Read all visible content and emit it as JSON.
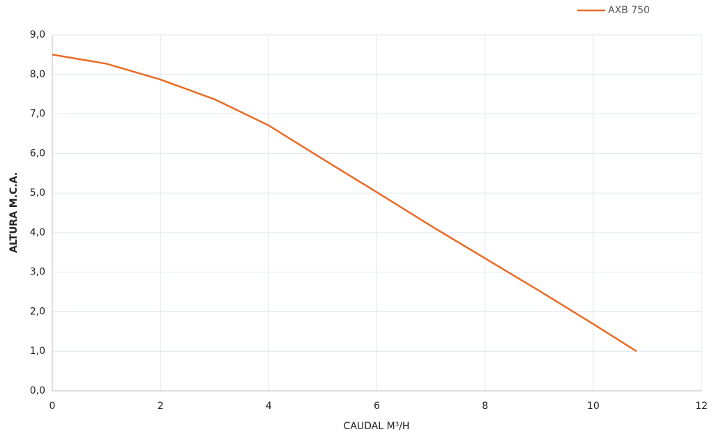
{
  "chart_data": {
    "type": "line",
    "x_label": "CAUDAL M³/H",
    "y_label": "ALTURA M.C.A.",
    "x": [
      0,
      1,
      2,
      3,
      4,
      5,
      6,
      7,
      8,
      9,
      10,
      10.8
    ],
    "series": [
      {
        "name": "AXB 750",
        "color": "#ea6a24",
        "values": [
          8.5,
          8.27,
          7.87,
          7.37,
          6.71,
          5.86,
          5.02,
          4.17,
          3.35,
          2.53,
          1.69,
          1.0
        ]
      }
    ],
    "xlim": [
      0,
      12
    ],
    "xticks": [
      0,
      2,
      4,
      6,
      8,
      10,
      12
    ],
    "ylim": [
      0,
      9
    ],
    "yticks": [
      {
        "value": 0,
        "label": "0,0"
      },
      {
        "value": 1,
        "label": "1,0"
      },
      {
        "value": 2,
        "label": "2,0"
      },
      {
        "value": 3,
        "label": "3,0"
      },
      {
        "value": 4,
        "label": "4,0"
      },
      {
        "value": 5,
        "label": "5,0"
      },
      {
        "value": 6,
        "label": "6,0"
      },
      {
        "value": 7,
        "label": "7,0"
      },
      {
        "value": 8,
        "label": "8,0"
      },
      {
        "value": 9,
        "label": "9,0"
      }
    ],
    "grid": true,
    "legend": "top-right"
  }
}
